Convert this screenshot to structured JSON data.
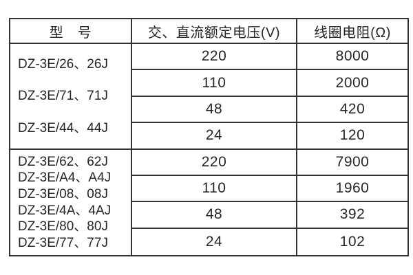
{
  "table": {
    "headers": {
      "model": "型　号",
      "voltage": "交、直流额定电压(V)",
      "resistance": "线圈电阻(Ω)"
    },
    "sections": [
      {
        "models": [
          "DZ-3E/26、26J",
          "DZ-3E/71、71J",
          "DZ-3E/44、44J"
        ],
        "rows": [
          {
            "voltage": "220",
            "resistance": "8000"
          },
          {
            "voltage": "110",
            "resistance": "2000"
          },
          {
            "voltage": "48",
            "resistance": "420"
          },
          {
            "voltage": "24",
            "resistance": "120"
          }
        ]
      },
      {
        "models": [
          "DZ-3E/62、62J",
          "DZ-3E/A4、A4J",
          "DZ-3E/08、08J",
          "DZ-3E/4A、4AJ",
          "DZ-3E/80、80J",
          "DZ-3E/77、77J"
        ],
        "rows": [
          {
            "voltage": "220",
            "resistance": "7900"
          },
          {
            "voltage": "110",
            "resistance": "1960"
          },
          {
            "voltage": "48",
            "resistance": "392"
          },
          {
            "voltage": "24",
            "resistance": "102"
          }
        ]
      }
    ]
  },
  "colors": {
    "border": "#333333",
    "text": "#262626",
    "background": "#ffffff"
  }
}
